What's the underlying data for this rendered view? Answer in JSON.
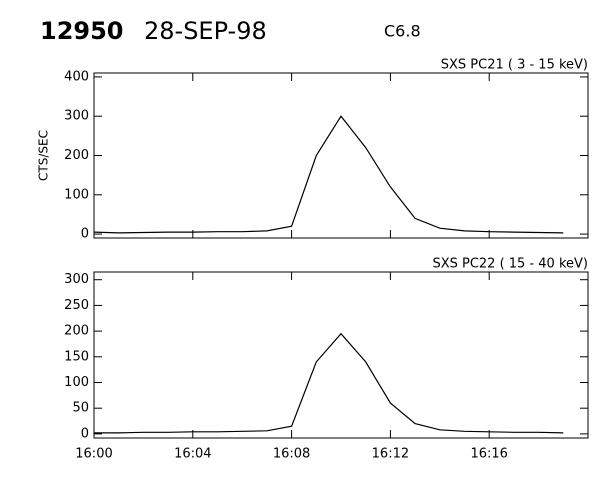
{
  "header": {
    "event": "12950",
    "date": "28-SEP-98",
    "class": "C6.8"
  },
  "chart_data": [
    {
      "type": "line",
      "title": "SXS PC21  (  3 - 15 keV)",
      "y_label": "CTS/SEC",
      "x": [
        "16:00",
        "16:01",
        "16:02",
        "16:03",
        "16:04",
        "16:05",
        "16:06",
        "16:07",
        "16:08",
        "16:09",
        "16:10",
        "16:11",
        "16:12",
        "16:13",
        "16:14",
        "16:15",
        "16:16",
        "16:17",
        "16:18",
        "16:19"
      ],
      "series": [
        {
          "name": "SXS PC21",
          "color": "#000000",
          "values": [
            5,
            3,
            4,
            5,
            5,
            6,
            6,
            8,
            20,
            200,
            300,
            220,
            120,
            40,
            15,
            8,
            6,
            5,
            4,
            3
          ]
        }
      ],
      "xlim": [
        "16:00",
        "16:20"
      ],
      "ylim": [
        -10,
        410
      ],
      "yticks": [
        0,
        100,
        200,
        300,
        400
      ]
    },
    {
      "type": "line",
      "title": "SXS PC22  ( 15 - 40 keV)",
      "x": [
        "16:00",
        "16:01",
        "16:02",
        "16:03",
        "16:04",
        "16:05",
        "16:06",
        "16:07",
        "16:08",
        "16:09",
        "16:10",
        "16:11",
        "16:12",
        "16:13",
        "16:14",
        "16:15",
        "16:16",
        "16:17",
        "16:18",
        "16:19"
      ],
      "series": [
        {
          "name": "SXS PC22",
          "color": "#000000",
          "values": [
            2,
            2,
            3,
            3,
            4,
            4,
            5,
            6,
            15,
            140,
            195,
            140,
            60,
            20,
            8,
            5,
            4,
            3,
            3,
            2
          ]
        }
      ],
      "xlim": [
        "16:00",
        "16:20"
      ],
      "ylim": [
        -8,
        315
      ],
      "yticks": [
        0,
        50,
        100,
        150,
        200,
        250,
        300
      ],
      "xticks": [
        "16:00",
        "16:04",
        "16:08",
        "16:12",
        "16:16"
      ]
    }
  ]
}
